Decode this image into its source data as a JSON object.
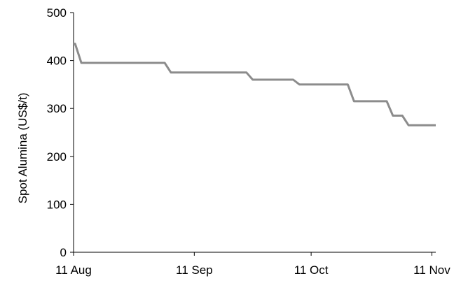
{
  "chart_data": {
    "type": "line",
    "title": "",
    "xlabel": "",
    "ylabel": "Spot Alumina (US$/t)",
    "ylim": [
      0,
      500
    ],
    "xlim": [
      "2008-08-11",
      "2008-11-12"
    ],
    "y_ticks": [
      "0",
      "100",
      "200",
      "300",
      "400",
      "500"
    ],
    "x_ticks": [
      {
        "date": "2008-08-11",
        "label": "11 Aug"
      },
      {
        "date": "2008-09-11",
        "label": "11 Sep"
      },
      {
        "date": "2008-10-11",
        "label": "11 Oct"
      },
      {
        "date": "2008-11-11",
        "label": "11 Nov"
      }
    ],
    "grid": false,
    "series": [
      {
        "color": "#8c8c8c",
        "step": true,
        "points": [
          {
            "x": "2008-08-11",
            "y": 435
          },
          {
            "x": "2008-08-13",
            "y": 395
          },
          {
            "x": "2008-09-05",
            "y": 375
          },
          {
            "x": "2008-09-26",
            "y": 360
          },
          {
            "x": "2008-10-08",
            "y": 350
          },
          {
            "x": "2008-10-22",
            "y": 315
          },
          {
            "x": "2008-11-01",
            "y": 285
          },
          {
            "x": "2008-11-05",
            "y": 265
          },
          {
            "x": "2008-11-12",
            "y": 265
          }
        ]
      }
    ]
  }
}
